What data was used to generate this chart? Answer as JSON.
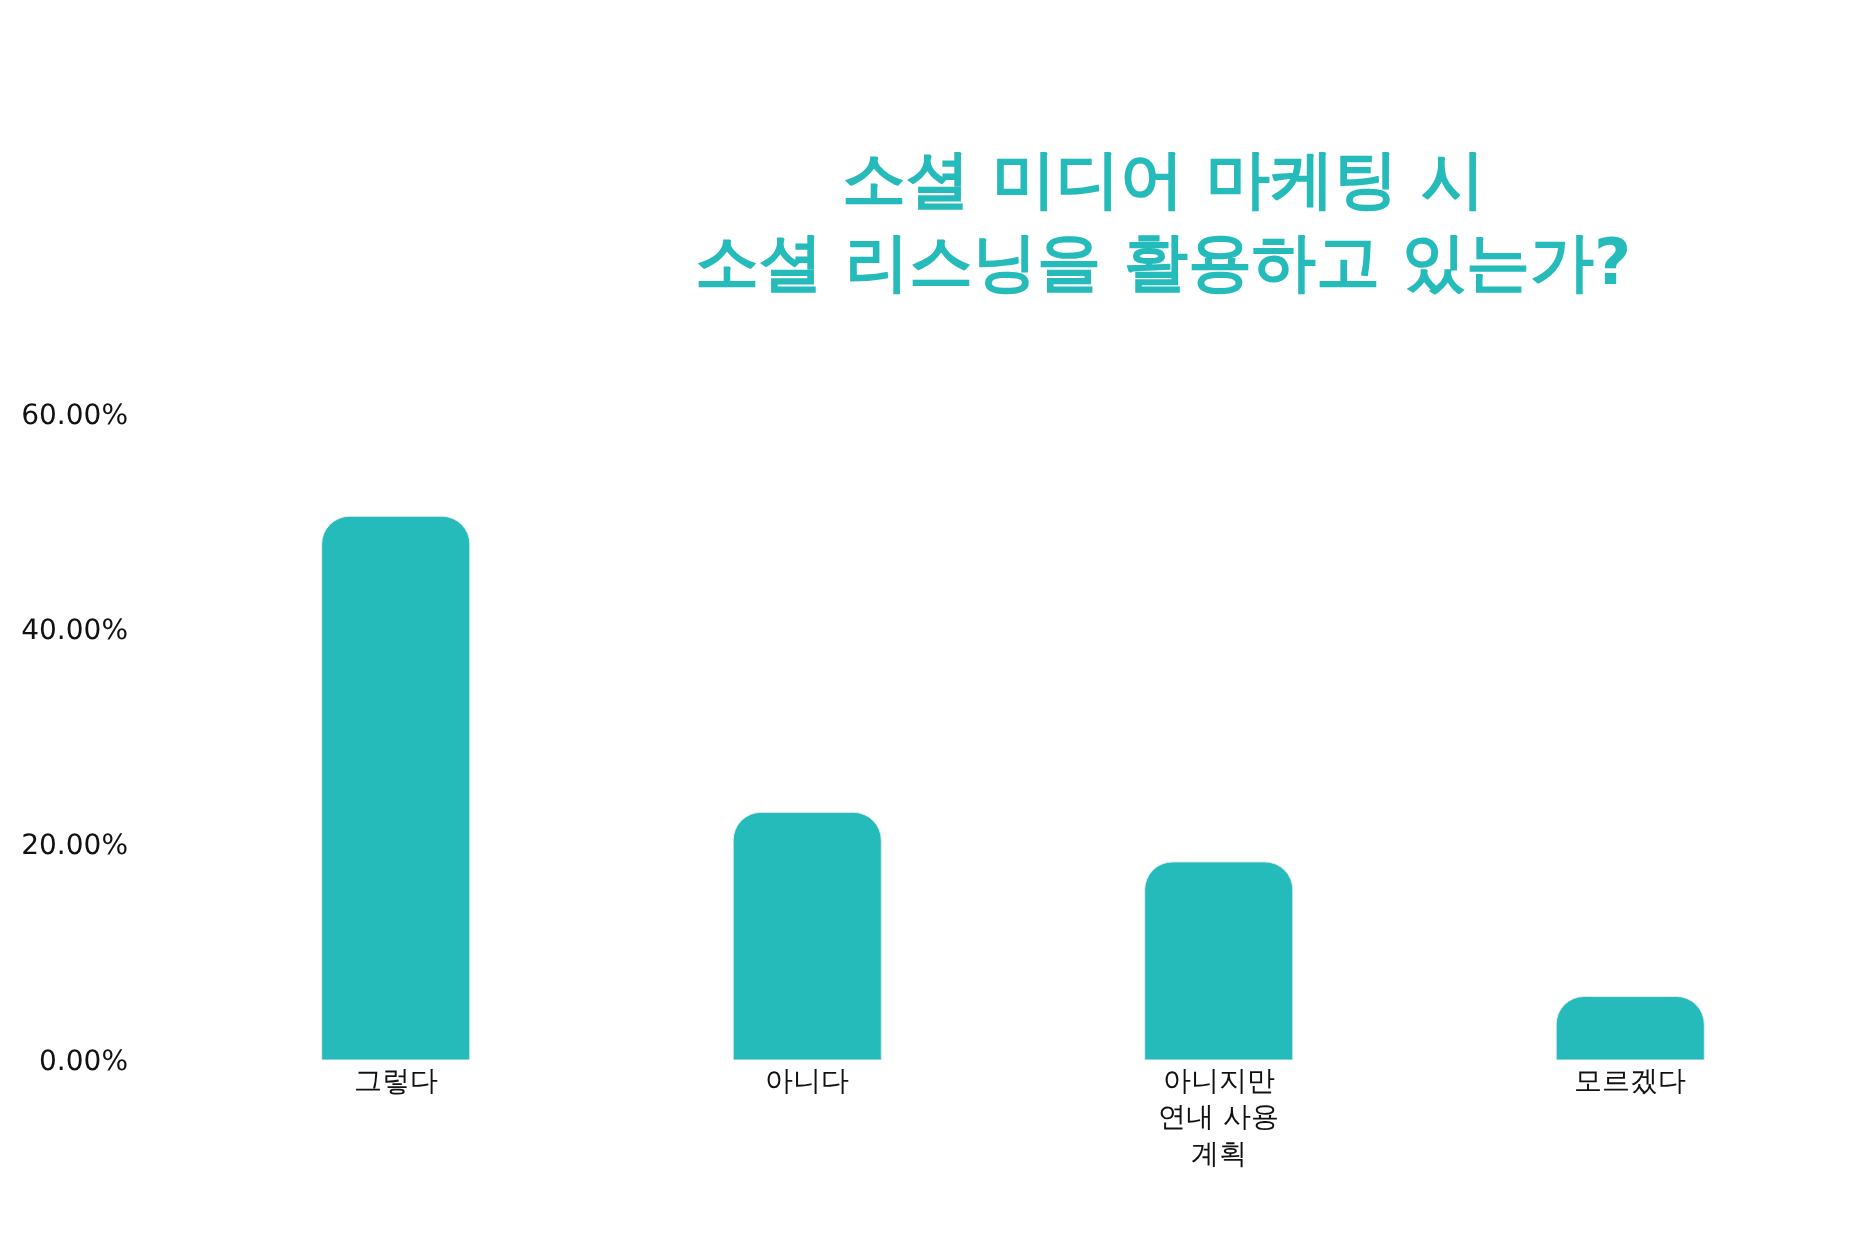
{
  "chart_data": {
    "type": "bar",
    "title": "소셜 미디어 마케팅 시\n소셜 리스닝을 활용하고 있는가?",
    "categories": [
      "그렇다",
      "아니다",
      "아니지만\n연내 사용\n계획",
      "모르겠다"
    ],
    "values": [
      50.5,
      23,
      18.4,
      5.9
    ],
    "color": "#26bbbb",
    "ylim": [
      0,
      60
    ],
    "yticks": [
      {
        "value": 0,
        "label": "0.00%"
      },
      {
        "value": 20,
        "label": "20.00%"
      },
      {
        "value": 40,
        "label": "40.00%"
      },
      {
        "value": 60,
        "label": "60.00%"
      }
    ],
    "grid": false
  }
}
